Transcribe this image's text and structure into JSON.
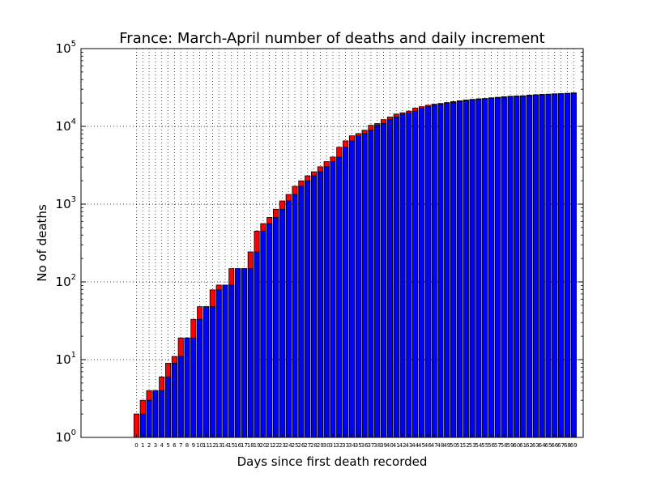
{
  "chart_data": {
    "type": "bar",
    "title": "France: March-April number of deaths and daily increment",
    "xlabel": "Days since first death recorded",
    "ylabel": "No of deaths",
    "yscale": "log",
    "ylim": [
      1,
      100000
    ],
    "ytick_labels": [
      {
        "base": "10",
        "exp": "0"
      },
      {
        "base": "10",
        "exp": "1"
      },
      {
        "base": "10",
        "exp": "2"
      },
      {
        "base": "10",
        "exp": "3"
      },
      {
        "base": "10",
        "exp": "4"
      },
      {
        "base": "10",
        "exp": "5"
      }
    ],
    "grid": true,
    "x_start": 0,
    "x": [
      0,
      1,
      2,
      3,
      4,
      5,
      6,
      7,
      8,
      9,
      10,
      11,
      12,
      13,
      14,
      15,
      16,
      17,
      18,
      19,
      20,
      21,
      22,
      23,
      24,
      25,
      26,
      27,
      28,
      29,
      30,
      31,
      32,
      33,
      34,
      35,
      36,
      37,
      38,
      39,
      40,
      41,
      42,
      43,
      44,
      45,
      46,
      47,
      48,
      49,
      50,
      51,
      52,
      53,
      54,
      55,
      56,
      57,
      58,
      59,
      60,
      61,
      62,
      63,
      64,
      65,
      66,
      67,
      68,
      69
    ],
    "series": [
      {
        "role": "cumulative_deaths",
        "color": "#0000ff",
        "values": [
          2,
          3,
          4,
          4,
          6,
          9,
          11,
          19,
          19,
          33,
          48,
          48,
          79,
          91,
          91,
          148,
          148,
          148,
          243,
          450,
          562,
          674,
          860,
          1100,
          1331,
          1696,
          1995,
          2314,
          2606,
          3024,
          3523,
          4032,
          5387,
          6507,
          7560,
          8078,
          8911,
          10328,
          10869,
          12210,
          13197,
          14393,
          14967,
          15729,
          17167,
          17920,
          18681,
          19323,
          19718,
          20265,
          20796,
          21340,
          21856,
          22245,
          22614,
          22856,
          23293,
          23660,
          24087,
          24376,
          24594,
          24760,
          25201,
          25531,
          25809,
          25987,
          26230,
          26380,
          26643,
          26991
        ]
      }
    ],
    "increment_color": "#ff0000"
  }
}
